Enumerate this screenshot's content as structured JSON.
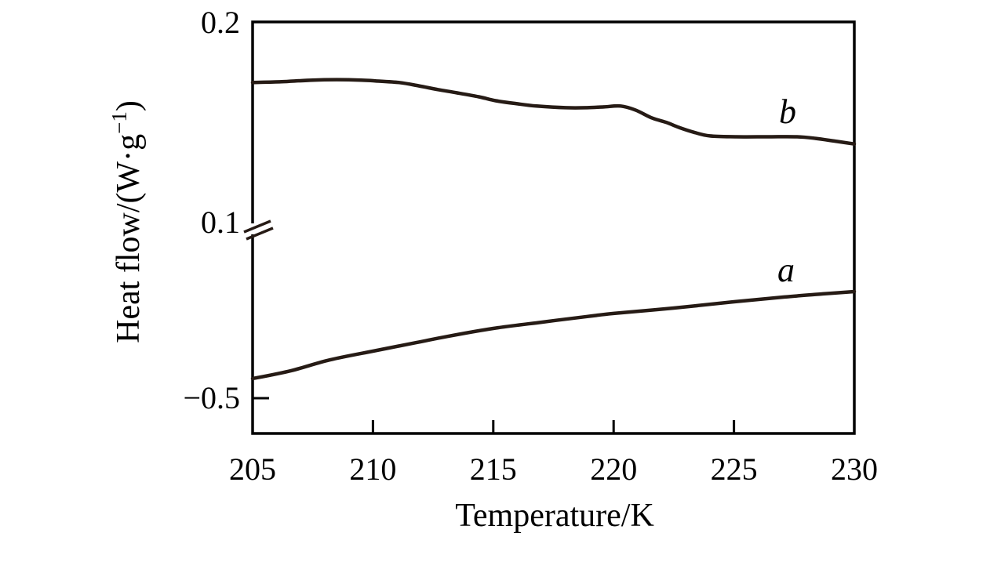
{
  "figure": {
    "background": "#ffffff",
    "axis_color": "#000000",
    "curve_color": "#261b15",
    "break_icon": "double-slash"
  },
  "chart_data": {
    "type": "line",
    "title": "",
    "xlabel": "Temperature/K",
    "ylabel": "Heat flow/(W·g⁻¹)",
    "ylabel_parts": {
      "prefix": "Heat flow/(W·g",
      "superscript": "−1",
      "suffix": ")"
    },
    "xlim": [
      205,
      230
    ],
    "x_ticks": [
      205,
      210,
      215,
      220,
      225,
      230
    ],
    "grid": false,
    "legend": "inline italic curve labels",
    "y_axis": {
      "broken": true,
      "break_at": 0.1,
      "tick_labels": [
        "0.2",
        "0.1",
        "−0.5"
      ],
      "upper_segment": [
        0.1,
        0.2
      ],
      "lower_segment": [
        -0.5,
        0.1
      ]
    },
    "series": [
      {
        "name": "a",
        "segment": "lower",
        "x": [
          205,
          206.6,
          208.2,
          210,
          211.8,
          213.1,
          215,
          217,
          218.9,
          220,
          222.5,
          225,
          227.1,
          228.7,
          230
        ],
        "y": [
          -0.431,
          -0.403,
          -0.365,
          -0.334,
          -0.304,
          -0.282,
          -0.254,
          -0.232,
          -0.212,
          -0.201,
          -0.182,
          -0.16,
          -0.143,
          -0.132,
          -0.124
        ]
      },
      {
        "name": "b",
        "segment": "upper",
        "x": [
          205,
          206.2,
          207.5,
          208.5,
          209.5,
          210.1,
          211.1,
          211.9,
          212.7,
          213.5,
          214.4,
          215.1,
          216,
          216.8,
          218,
          218.9,
          219.6,
          220.3,
          220.9,
          221.6,
          222.2,
          222.7,
          223.3,
          224,
          225.1,
          226.4,
          227.6,
          228.4,
          229.3,
          230
        ],
        "y": [
          0.1706,
          0.171,
          0.1718,
          0.172,
          0.1718,
          0.1714,
          0.1706,
          0.169,
          0.1672,
          0.1656,
          0.1637,
          0.1618,
          0.1603,
          0.1592,
          0.1584,
          0.1584,
          0.1588,
          0.1592,
          0.1573,
          0.1534,
          0.1512,
          0.1489,
          0.1466,
          0.1447,
          0.1443,
          0.1443,
          0.1443,
          0.1435,
          0.142,
          0.1408
        ]
      }
    ]
  }
}
